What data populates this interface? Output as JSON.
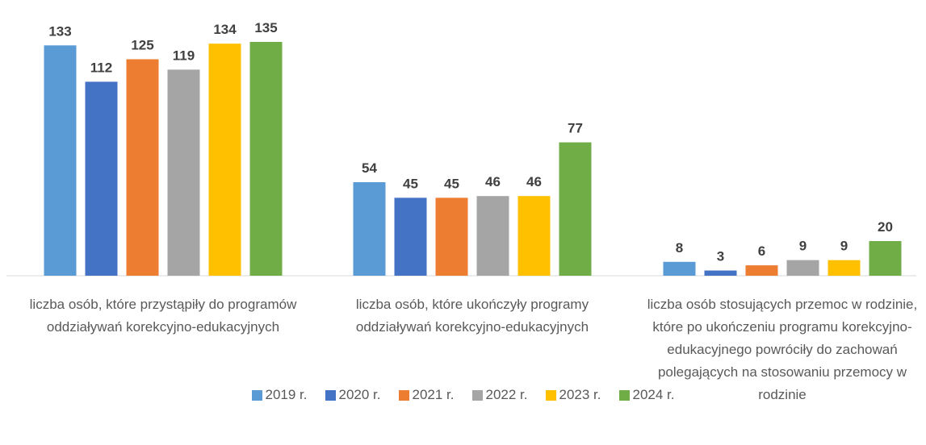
{
  "chart_data": {
    "type": "bar",
    "categories": [
      "liczba osób, które przystąpiły do programów oddziaływań korekcyjno-edukacyjnych",
      "liczba osób, które ukończyły programy oddziaływań korekcyjno-edukacyjnych",
      "liczba osób stosujących przemoc w rodzinie, które po ukończeniu programu korekcyjno-edukacyjnego powróciły do zachowań polegających na stosowaniu przemocy w rodzinie"
    ],
    "series": [
      {
        "name": "2019 r.",
        "color": "#5b9bd5",
        "values": [
          133,
          54,
          8
        ]
      },
      {
        "name": "2020 r.",
        "color": "#4472c4",
        "values": [
          112,
          45,
          3
        ]
      },
      {
        "name": "2021 r.",
        "color": "#ed7d31",
        "values": [
          125,
          45,
          6
        ]
      },
      {
        "name": "2022 r.",
        "color": "#a5a5a5",
        "values": [
          119,
          46,
          9
        ]
      },
      {
        "name": "2023 r.",
        "color": "#ffc000",
        "values": [
          134,
          46,
          9
        ]
      },
      {
        "name": "2024 r.",
        "color": "#70ad47",
        "values": [
          135,
          77,
          20
        ]
      }
    ],
    "legend": "bottom"
  }
}
